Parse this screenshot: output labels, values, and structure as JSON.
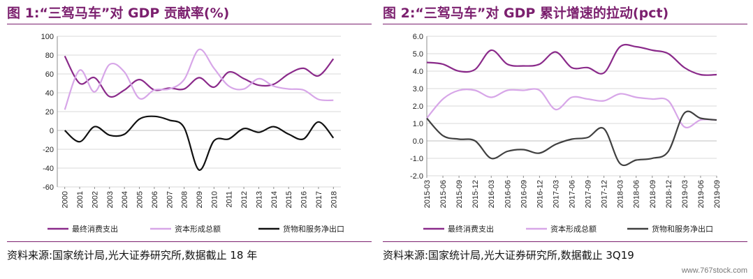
{
  "left": {
    "title": "图 1:“三驾马车”对 GDP 贡献率(%)",
    "source": "资料来源:国家统计局,光大证券研究所,数据截止 18 年",
    "chart_data": {
      "type": "line",
      "categories": [
        "2000",
        "2001",
        "2002",
        "2003",
        "2004",
        "2005",
        "2006",
        "2007",
        "2008",
        "2009",
        "2010",
        "2011",
        "2012",
        "2013",
        "2014",
        "2015",
        "2016",
        "2017",
        "2018"
      ],
      "ylim": [
        -60,
        100
      ],
      "yticks": [
        100,
        80,
        60,
        40,
        20,
        0,
        -20,
        -40,
        -60
      ],
      "grid": true,
      "legend_position": "bottom",
      "series": [
        {
          "name": "最终消费支出",
          "color": "#8a2a8a",
          "values": [
            79,
            50,
            56,
            36,
            43,
            54,
            43,
            45,
            44,
            56,
            46,
            62,
            55,
            48,
            49,
            60,
            66,
            58,
            76
          ]
        },
        {
          "name": "资本形成总额",
          "color": "#d7a6e8",
          "values": [
            22,
            64,
            41,
            70,
            62,
            34,
            43,
            44,
            54,
            86,
            66,
            47,
            44,
            55,
            47,
            44,
            43,
            33,
            32
          ]
        },
        {
          "name": "货物和服务净出口",
          "color": "#111111",
          "values": [
            0,
            -12,
            4,
            -5,
            -4,
            12,
            15,
            11,
            3,
            -42,
            -11,
            -9,
            2,
            -2,
            4,
            -4,
            -9,
            9,
            -8
          ]
        }
      ]
    }
  },
  "right": {
    "title": "图 2:“三驾马车”对 GDP 累计增速的拉动(pct)",
    "source": "资料来源:国家统计局,光大证券研究所,数据截止 3Q19",
    "chart_data": {
      "type": "line",
      "categories": [
        "2015-03",
        "2015-06",
        "2015-09",
        "2015-12",
        "2016-03",
        "2016-06",
        "2016-09",
        "2016-12",
        "2017-03",
        "2017-06",
        "2017-09",
        "2017-12",
        "2018-03",
        "2018-06",
        "2018-09",
        "2018-12",
        "2019-03",
        "2019-06",
        "2019-09"
      ],
      "ylim": [
        -2.0,
        6.0
      ],
      "yticks": [
        "6.0",
        "5.0",
        "4.0",
        "3.0",
        "2.0",
        "1.0",
        "0.0",
        "-1.0",
        "-2.0"
      ],
      "grid": true,
      "legend_position": "bottom",
      "series": [
        {
          "name": "最终消费支出",
          "color": "#8a2a8a",
          "values": [
            4.5,
            4.4,
            4.0,
            4.1,
            5.2,
            4.4,
            4.3,
            4.4,
            5.1,
            4.2,
            4.2,
            3.9,
            5.4,
            5.4,
            5.2,
            5.0,
            4.2,
            3.8,
            3.8
          ]
        },
        {
          "name": "资本形成总额",
          "color": "#d7a6e8",
          "values": [
            1.3,
            2.4,
            2.9,
            2.9,
            2.5,
            2.9,
            2.9,
            2.9,
            1.8,
            2.5,
            2.4,
            2.3,
            2.7,
            2.5,
            2.4,
            2.3,
            0.8,
            1.2,
            1.2
          ]
        },
        {
          "name": "货物和服务净出口",
          "color": "#404040",
          "values": [
            1.3,
            0.3,
            0.1,
            0.0,
            -1.0,
            -0.6,
            -0.5,
            -0.7,
            -0.2,
            0.1,
            0.2,
            0.7,
            -1.3,
            -1.1,
            -1.0,
            -0.6,
            1.6,
            1.3,
            1.2
          ]
        }
      ]
    }
  },
  "watermark": "www.767stock.com"
}
